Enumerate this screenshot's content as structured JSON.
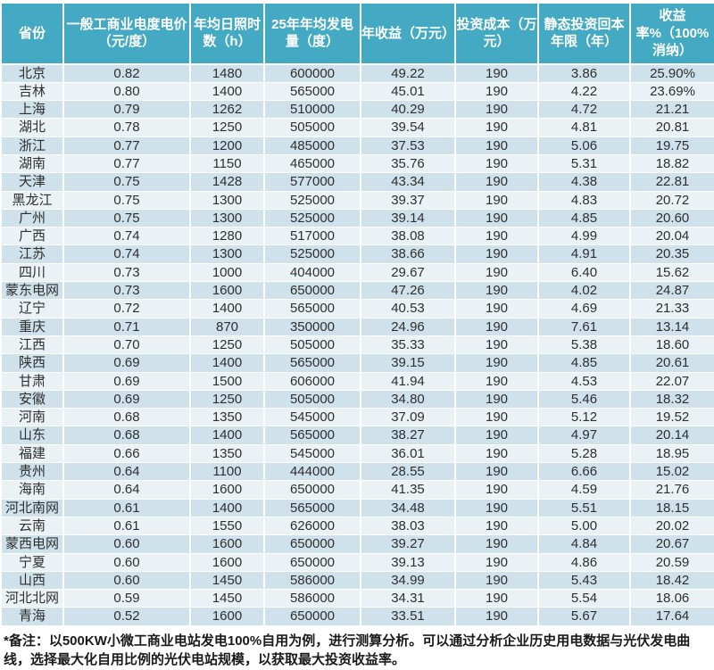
{
  "colors": {
    "header_bg": "#44A9C3",
    "row_odd": "#CFE1EA",
    "row_even": "#EAF2F6",
    "text": "#2f2f2f"
  },
  "table": {
    "columns": [
      "省份",
      "一般工商业电度电价（元/度）",
      "年均日照时数（h）",
      "25年年均发电量（度）",
      "年收益（万元）",
      "投资成本（万元）",
      "静态投资回本年限（年）",
      "收益率%（100%消纳）"
    ],
    "column_keys": [
      "province",
      "price",
      "sunshine-hours",
      "generation",
      "annual-income",
      "investment-cost",
      "payback-years",
      "return-rate"
    ],
    "rows": [
      [
        "北京",
        "0.82",
        "1480",
        "600000",
        "49.22",
        "190",
        "3.86",
        "25.90%"
      ],
      [
        "吉林",
        "0.80",
        "1400",
        "565000",
        "45.01",
        "190",
        "4.22",
        "23.69%"
      ],
      [
        "上海",
        "0.79",
        "1262",
        "510000",
        "40.29",
        "190",
        "4.72",
        "21.21"
      ],
      [
        "湖北",
        "0.78",
        "1250",
        "505000",
        "39.54",
        "190",
        "4.81",
        "20.81"
      ],
      [
        "浙江",
        "0.77",
        "1200",
        "485000",
        "37.53",
        "190",
        "5.06",
        "19.75"
      ],
      [
        "湖南",
        "0.77",
        "1150",
        "465000",
        "35.76",
        "190",
        "5.31",
        "18.82"
      ],
      [
        "天津",
        "0.75",
        "1428",
        "577000",
        "43.34",
        "190",
        "4.38",
        "22.81"
      ],
      [
        "黑龙江",
        "0.75",
        "1300",
        "525000",
        "39.37",
        "190",
        "4.83",
        "20.72"
      ],
      [
        "广州",
        "0.75",
        "1300",
        "525000",
        "39.14",
        "190",
        "4.85",
        "20.60"
      ],
      [
        "广西",
        "0.74",
        "1280",
        "517000",
        "38.08",
        "190",
        "4.99",
        "20.04"
      ],
      [
        "江苏",
        "0.74",
        "1300",
        "525000",
        "38.66",
        "190",
        "4.91",
        "20.35"
      ],
      [
        "四川",
        "0.73",
        "1000",
        "404000",
        "29.67",
        "190",
        "6.40",
        "15.62"
      ],
      [
        "蒙东电网",
        "0.73",
        "1600",
        "650000",
        "47.26",
        "190",
        "4.02",
        "24.87"
      ],
      [
        "辽宁",
        "0.72",
        "1400",
        "565000",
        "40.53",
        "190",
        "4.69",
        "21.33"
      ],
      [
        "重庆",
        "0.71",
        "870",
        "350000",
        "24.96",
        "190",
        "7.61",
        "13.14"
      ],
      [
        "江西",
        "0.70",
        "1250",
        "505000",
        "35.33",
        "190",
        "5.38",
        "18.60"
      ],
      [
        "陕西",
        "0.69",
        "1400",
        "565000",
        "39.15",
        "190",
        "4.85",
        "20.61"
      ],
      [
        "甘肃",
        "0.69",
        "1500",
        "606000",
        "41.94",
        "190",
        "4.53",
        "22.07"
      ],
      [
        "安徽",
        "0.69",
        "1250",
        "505000",
        "34.80",
        "190",
        "5.46",
        "18.32"
      ],
      [
        "河南",
        "0.68",
        "1350",
        "545000",
        "37.09",
        "190",
        "5.12",
        "19.52"
      ],
      [
        "山东",
        "0.68",
        "1400",
        "565000",
        "38.27",
        "190",
        "4.97",
        "20.14"
      ],
      [
        "福建",
        "0.66",
        "1350",
        "545000",
        "36.01",
        "190",
        "5.28",
        "18.95"
      ],
      [
        "贵州",
        "0.64",
        "1100",
        "444000",
        "28.55",
        "190",
        "6.66",
        "15.02"
      ],
      [
        "海南",
        "0.64",
        "1600",
        "650000",
        "41.35",
        "190",
        "4.59",
        "21.76"
      ],
      [
        "河北南网",
        "0.61",
        "1400",
        "565000",
        "34.48",
        "190",
        "5.51",
        "18.15"
      ],
      [
        "云南",
        "0.61",
        "1550",
        "626000",
        "38.03",
        "190",
        "5.00",
        "20.02"
      ],
      [
        "蒙西电网",
        "0.60",
        "1600",
        "650000",
        "39.27",
        "190",
        "4.84",
        "20.67"
      ],
      [
        "宁夏",
        "0.60",
        "1600",
        "650000",
        "39.13",
        "190",
        "4.86",
        "20.59"
      ],
      [
        "山西",
        "0.60",
        "1450",
        "586000",
        "34.99",
        "190",
        "5.43",
        "18.42"
      ],
      [
        "河北北网",
        "0.59",
        "1450",
        "586000",
        "34.31",
        "190",
        "5.54",
        "18.06"
      ],
      [
        "青海",
        "0.52",
        "1600",
        "650000",
        "33.51",
        "190",
        "5.67",
        "17.64"
      ]
    ]
  },
  "chart_data": {
    "type": "table",
    "title": "",
    "columns": [
      "省份",
      "一般工商业电度电价（元/度）",
      "年均日照时数（h）",
      "25年年均发电量（度）",
      "年收益（万元）",
      "投资成本（万元）",
      "静态投资回本年限（年）",
      "收益率%（100%消纳）"
    ],
    "note": "data identical to table.rows"
  },
  "footnote": {
    "text": "*备注：以500KW小微工商业电站发电100%自用为例，进行测算分析。可以通过分析企业历史用电数据与光伏发电曲线，选择最大化自用比例的光伏电站规模，以获取最大投资收益率。"
  }
}
